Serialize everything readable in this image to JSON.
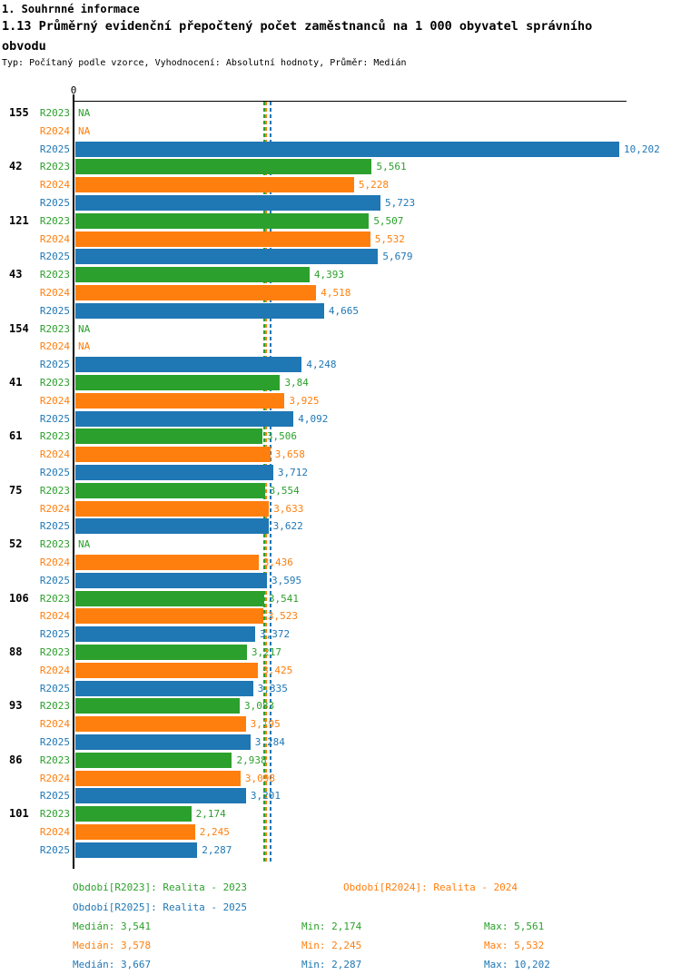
{
  "header": {
    "title": "1. Souhrnné informace",
    "subtitle": "1.13 Průměrný evidenční přepočtený počet zaměstnanců na 1 000 obyvatel správního obvodu",
    "meta": "Typ: Počítaný podle vzorce, Vyhodnocení: Absolutní hodnoty, Průměr: Medián"
  },
  "chart_data": {
    "type": "bar",
    "orientation": "horizontal",
    "title": "1.13 Průměrný evidenční přepočtený počet zaměstnanců na 1 000 obyvatel správního obvodu",
    "axis": {
      "origin_label": "0",
      "xlim": [
        0,
        10.35
      ],
      "grid": false
    },
    "na_label": "NA",
    "categories": [
      "155",
      "42",
      "121",
      "43",
      "154",
      "41",
      "61",
      "75",
      "52",
      "106",
      "88",
      "93",
      "86",
      "101"
    ],
    "series": [
      {
        "name": "R2023",
        "label": "R2023",
        "color": "#2ca02c",
        "values": [
          null,
          5.561,
          5.507,
          4.393,
          null,
          3.84,
          3.506,
          3.554,
          null,
          3.541,
          3.217,
          3.083,
          2.938,
          2.174
        ],
        "labels": [
          "NA",
          "5,561",
          "5,507",
          "4,393",
          "NA",
          "3,84",
          "3,506",
          "3,554",
          "NA",
          "3,541",
          "3,217",
          "3,083",
          "2,938",
          "2,174"
        ]
      },
      {
        "name": "R2024",
        "label": "R2024",
        "color": "#ff7f0e",
        "values": [
          null,
          5.228,
          5.532,
          4.518,
          null,
          3.925,
          3.658,
          3.633,
          3.436,
          3.523,
          3.425,
          3.195,
          3.098,
          2.245
        ],
        "labels": [
          "NA",
          "5,228",
          "5,532",
          "4,518",
          "NA",
          "3,925",
          "3,658",
          "3,633",
          "3,436",
          "3,523",
          "3,425",
          "3,195",
          "3,098",
          "2,245"
        ]
      },
      {
        "name": "R2025",
        "label": "R2025",
        "color": "#1f77b4",
        "values": [
          10.202,
          5.723,
          5.679,
          4.665,
          4.248,
          4.092,
          3.712,
          3.622,
          3.595,
          3.372,
          3.335,
          3.284,
          3.201,
          2.287
        ],
        "labels": [
          "10,202",
          "5,723",
          "5,679",
          "4,665",
          "4,248",
          "4,092",
          "3,712",
          "3,622",
          "3,595",
          "3,372",
          "3,335",
          "3,284",
          "3,201",
          "2,287"
        ]
      }
    ],
    "median_lines": [
      {
        "series": "R2023",
        "value": 3.541,
        "color": "#2ca02c"
      },
      {
        "series": "R2024",
        "value": 3.578,
        "color": "#ff7f0e"
      },
      {
        "series": "R2025",
        "value": 3.667,
        "color": "#1f77b4"
      }
    ]
  },
  "legend": {
    "items": [
      {
        "label": "Období[R2023]: Realita - 2023",
        "color": "#2ca02c"
      },
      {
        "label": "Období[R2024]: Realita - 2024",
        "color": "#ff7f0e"
      },
      {
        "label": "Období[R2025]: Realita - 2025",
        "color": "#1f77b4"
      }
    ]
  },
  "stats": {
    "rows": [
      {
        "color": "#2ca02c",
        "median": "Medián: 3,541",
        "min": "Min: 2,174",
        "max": "Max: 5,561"
      },
      {
        "color": "#ff7f0e",
        "median": "Medián: 3,578",
        "min": "Min: 2,245",
        "max": "Max: 5,532"
      },
      {
        "color": "#1f77b4",
        "median": "Medián: 3,667",
        "min": "Min: 2,287",
        "max": "Max: 10,202"
      }
    ]
  }
}
